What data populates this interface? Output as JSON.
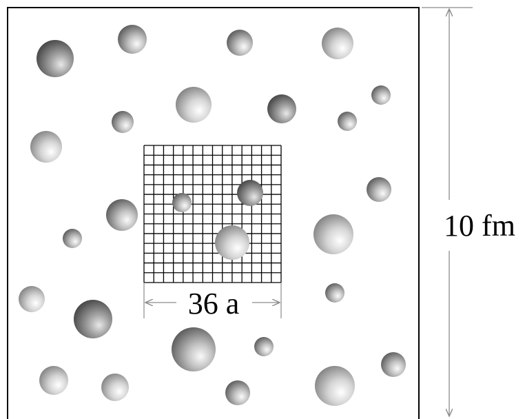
{
  "diagram": {
    "box_height_label": "10 fm",
    "lattice_width_label": "36 a"
  },
  "colors": {
    "frame": "#000000",
    "grid": "#000000",
    "dimension_line": "#8a8a8a",
    "sphere_highlight": "#fafafa",
    "sphere_mid": "#b9b9b9",
    "sphere_shadow": "#4a4a4a"
  }
}
